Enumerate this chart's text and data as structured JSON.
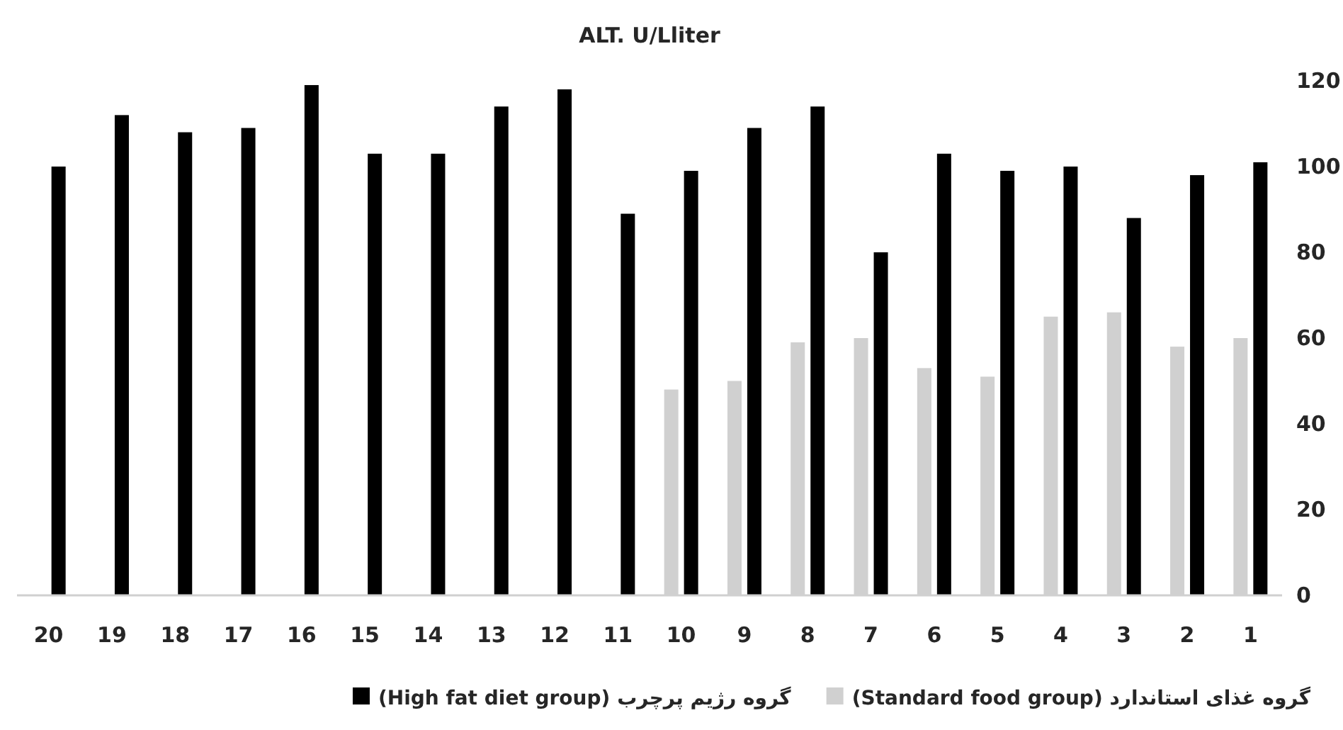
{
  "chart_data": {
    "type": "bar",
    "title": "ALT. U/Lliter",
    "categories": [
      "20",
      "19",
      "18",
      "17",
      "16",
      "15",
      "14",
      "13",
      "12",
      "11",
      "10",
      "9",
      "8",
      "7",
      "6",
      "5",
      "4",
      "3",
      "2",
      "1"
    ],
    "series": [
      {
        "name": "گروه غذای استاندارد (Standard food group)",
        "color": "#d0d0d0",
        "values": [
          null,
          null,
          null,
          null,
          null,
          null,
          null,
          null,
          null,
          null,
          48,
          50,
          59,
          60,
          53,
          51,
          65,
          66,
          58,
          60
        ]
      },
      {
        "name": "گروه رژیم پرچرب (High fat diet group)",
        "color": "#000000",
        "values": [
          100,
          112,
          108,
          109,
          119,
          103,
          103,
          114,
          118,
          89,
          99,
          109,
          114,
          80,
          103,
          99,
          100,
          88,
          98,
          101
        ]
      }
    ],
    "ylim": [
      0,
      120
    ],
    "yticks": [
      0,
      20,
      40,
      60,
      80,
      100,
      120
    ],
    "grid": false,
    "legend": "bottom"
  }
}
